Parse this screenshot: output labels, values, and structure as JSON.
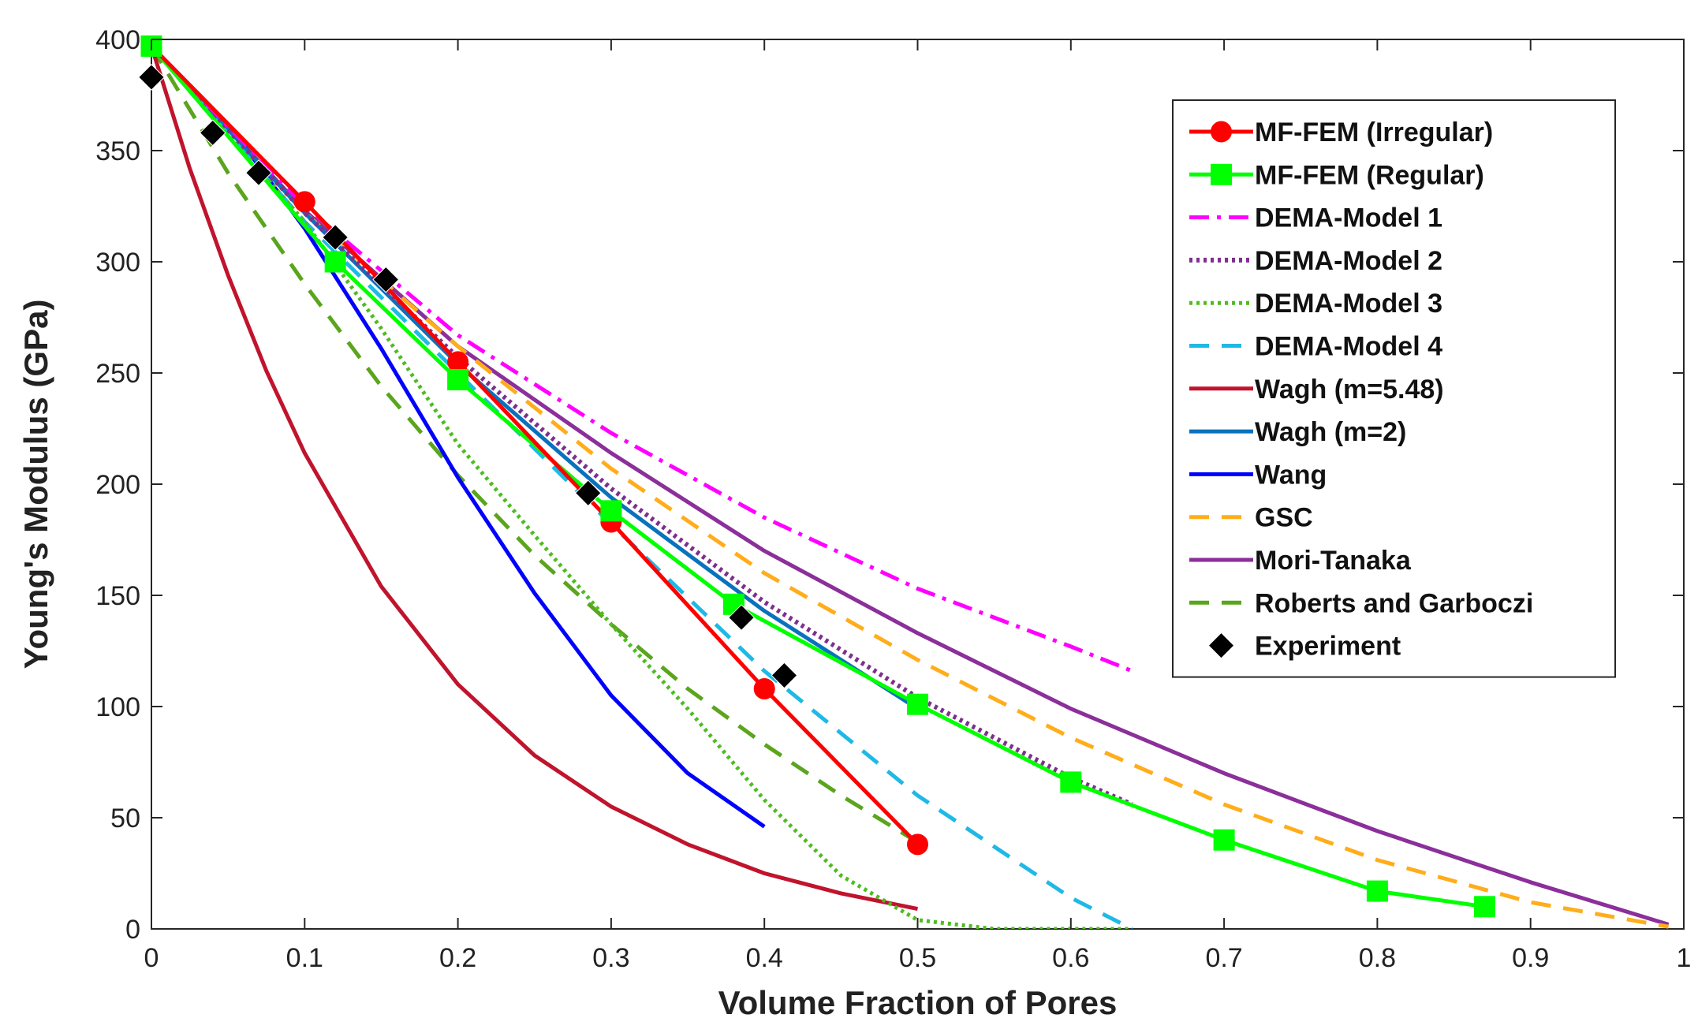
{
  "chart_data": {
    "type": "line",
    "title": "",
    "xlabel": "Volume Fraction of Pores",
    "ylabel": "Young's Modulus (GPa)",
    "xlim": [
      0,
      1
    ],
    "ylim": [
      0,
      400
    ],
    "grid": false,
    "legend_position": "top-right",
    "x_ticks": [
      0,
      0.1,
      0.2,
      0.3,
      0.4,
      0.5,
      0.6,
      0.7,
      0.8,
      0.9,
      1
    ],
    "x_tick_labels": [
      "0",
      "0.1",
      "0.2",
      "0.3",
      "0.4",
      "0.5",
      "0.6",
      "0.7",
      "0.8",
      "0.9",
      "1"
    ],
    "y_ticks": [
      0,
      50,
      100,
      150,
      200,
      250,
      300,
      350,
      400
    ],
    "y_tick_labels": [
      "0",
      "50",
      "100",
      "150",
      "200",
      "250",
      "300",
      "350",
      "400"
    ],
    "series": [
      {
        "name": "MF-FEM (Irregular)",
        "color": "#ff0000",
        "line": "solid",
        "width": 5,
        "marker": "circle",
        "x": [
          0,
          0.1,
          0.2,
          0.3,
          0.4,
          0.5
        ],
        "y": [
          397,
          327,
          255,
          183,
          108,
          38
        ]
      },
      {
        "name": "MF-FEM (Regular)",
        "color": "#00ff00",
        "line": "solid",
        "width": 5,
        "marker": "square",
        "x": [
          0,
          0.12,
          0.2,
          0.3,
          0.38,
          0.5,
          0.6,
          0.7,
          0.8,
          0.87
        ],
        "y": [
          397,
          300,
          247,
          188,
          146,
          101,
          66,
          40,
          17,
          10
        ]
      },
      {
        "name": "DEMA-Model 1",
        "color": "#ff00ff",
        "line": "dashdot",
        "width": 5,
        "marker": "none",
        "x": [
          0,
          0.1,
          0.2,
          0.3,
          0.4,
          0.5,
          0.6,
          0.64
        ],
        "y": [
          397,
          325,
          267,
          223,
          185,
          153,
          127,
          116
        ]
      },
      {
        "name": "DEMA-Model 2",
        "color": "#7e2f8e",
        "line": "dotted",
        "width": 6,
        "marker": "none",
        "x": [
          0,
          0.1,
          0.2,
          0.3,
          0.4,
          0.5,
          0.6,
          0.64
        ],
        "y": [
          397,
          322,
          257,
          198,
          147,
          104,
          68,
          56
        ]
      },
      {
        "name": "DEMA-Model 3",
        "color": "#4dbd20",
        "line": "dotted",
        "width": 5,
        "marker": "none",
        "x": [
          0,
          0.1,
          0.15,
          0.2,
          0.25,
          0.3,
          0.35,
          0.4,
          0.45,
          0.5,
          0.55,
          0.64
        ],
        "y": [
          397,
          318,
          270,
          218,
          177,
          137,
          99,
          58,
          24,
          4,
          0,
          0
        ]
      },
      {
        "name": "DEMA-Model 4",
        "color": "#1fb9e6",
        "line": "dashed",
        "width": 5,
        "marker": "none",
        "x": [
          0,
          0.1,
          0.2,
          0.3,
          0.4,
          0.5,
          0.6,
          0.64
        ],
        "y": [
          397,
          318,
          250,
          182,
          116,
          60,
          14,
          0
        ]
      },
      {
        "name": "Wagh (m=5.48)",
        "color": "#c0142d",
        "line": "solid",
        "width": 5,
        "marker": "none",
        "x": [
          0,
          0.025,
          0.05,
          0.075,
          0.1,
          0.15,
          0.2,
          0.25,
          0.3,
          0.35,
          0.4,
          0.45,
          0.5
        ],
        "y": [
          397,
          342,
          294,
          251,
          214,
          154,
          110,
          78,
          55,
          38,
          25,
          16,
          9
        ]
      },
      {
        "name": "Wagh (m=2)",
        "color": "#0a72bd",
        "line": "solid",
        "width": 5,
        "marker": "none",
        "x": [
          0,
          0.1,
          0.2,
          0.3,
          0.4,
          0.5
        ],
        "y": [
          397,
          322,
          254,
          194,
          143,
          99
        ]
      },
      {
        "name": "Wang",
        "color": "#0000ff",
        "line": "solid",
        "width": 5,
        "marker": "none",
        "x": [
          0,
          0.05,
          0.1,
          0.15,
          0.2,
          0.25,
          0.3,
          0.35,
          0.4
        ],
        "y": [
          397,
          362,
          315,
          261,
          203,
          151,
          105,
          70,
          46
        ]
      },
      {
        "name": "GSC",
        "color": "#ffad1a",
        "line": "dashed",
        "width": 5,
        "marker": "none",
        "x": [
          0,
          0.1,
          0.2,
          0.3,
          0.4,
          0.5,
          0.6,
          0.7,
          0.8,
          0.9,
          0.99
        ],
        "y": [
          397,
          322,
          262,
          207,
          160,
          121,
          86,
          56,
          31,
          12,
          1
        ]
      },
      {
        "name": "Mori-Tanaka",
        "color": "#8b2f9a",
        "line": "solid",
        "width": 5,
        "marker": "none",
        "x": [
          0,
          0.1,
          0.2,
          0.3,
          0.4,
          0.5,
          0.6,
          0.7,
          0.8,
          0.9,
          0.99
        ],
        "y": [
          397,
          323,
          262,
          214,
          170,
          133,
          99,
          70,
          44,
          21,
          2
        ]
      },
      {
        "name": "Roberts and Garboczi",
        "color": "#5aa51d",
        "line": "dashed",
        "width": 5,
        "marker": "none",
        "x": [
          0,
          0.05,
          0.1,
          0.15,
          0.2,
          0.25,
          0.3,
          0.35,
          0.4,
          0.45,
          0.5
        ],
        "y": [
          397,
          340,
          290,
          244,
          204,
          168,
          137,
          108,
          83,
          60,
          39
        ]
      },
      {
        "name": "Experiment",
        "color": "#000000",
        "line": "none",
        "width": 0,
        "marker": "diamond",
        "x": [
          0,
          0.04,
          0.07,
          0.12,
          0.153,
          0.285,
          0.385,
          0.413
        ],
        "y": [
          383,
          358,
          340,
          311,
          292,
          196,
          140,
          114
        ]
      }
    ]
  }
}
